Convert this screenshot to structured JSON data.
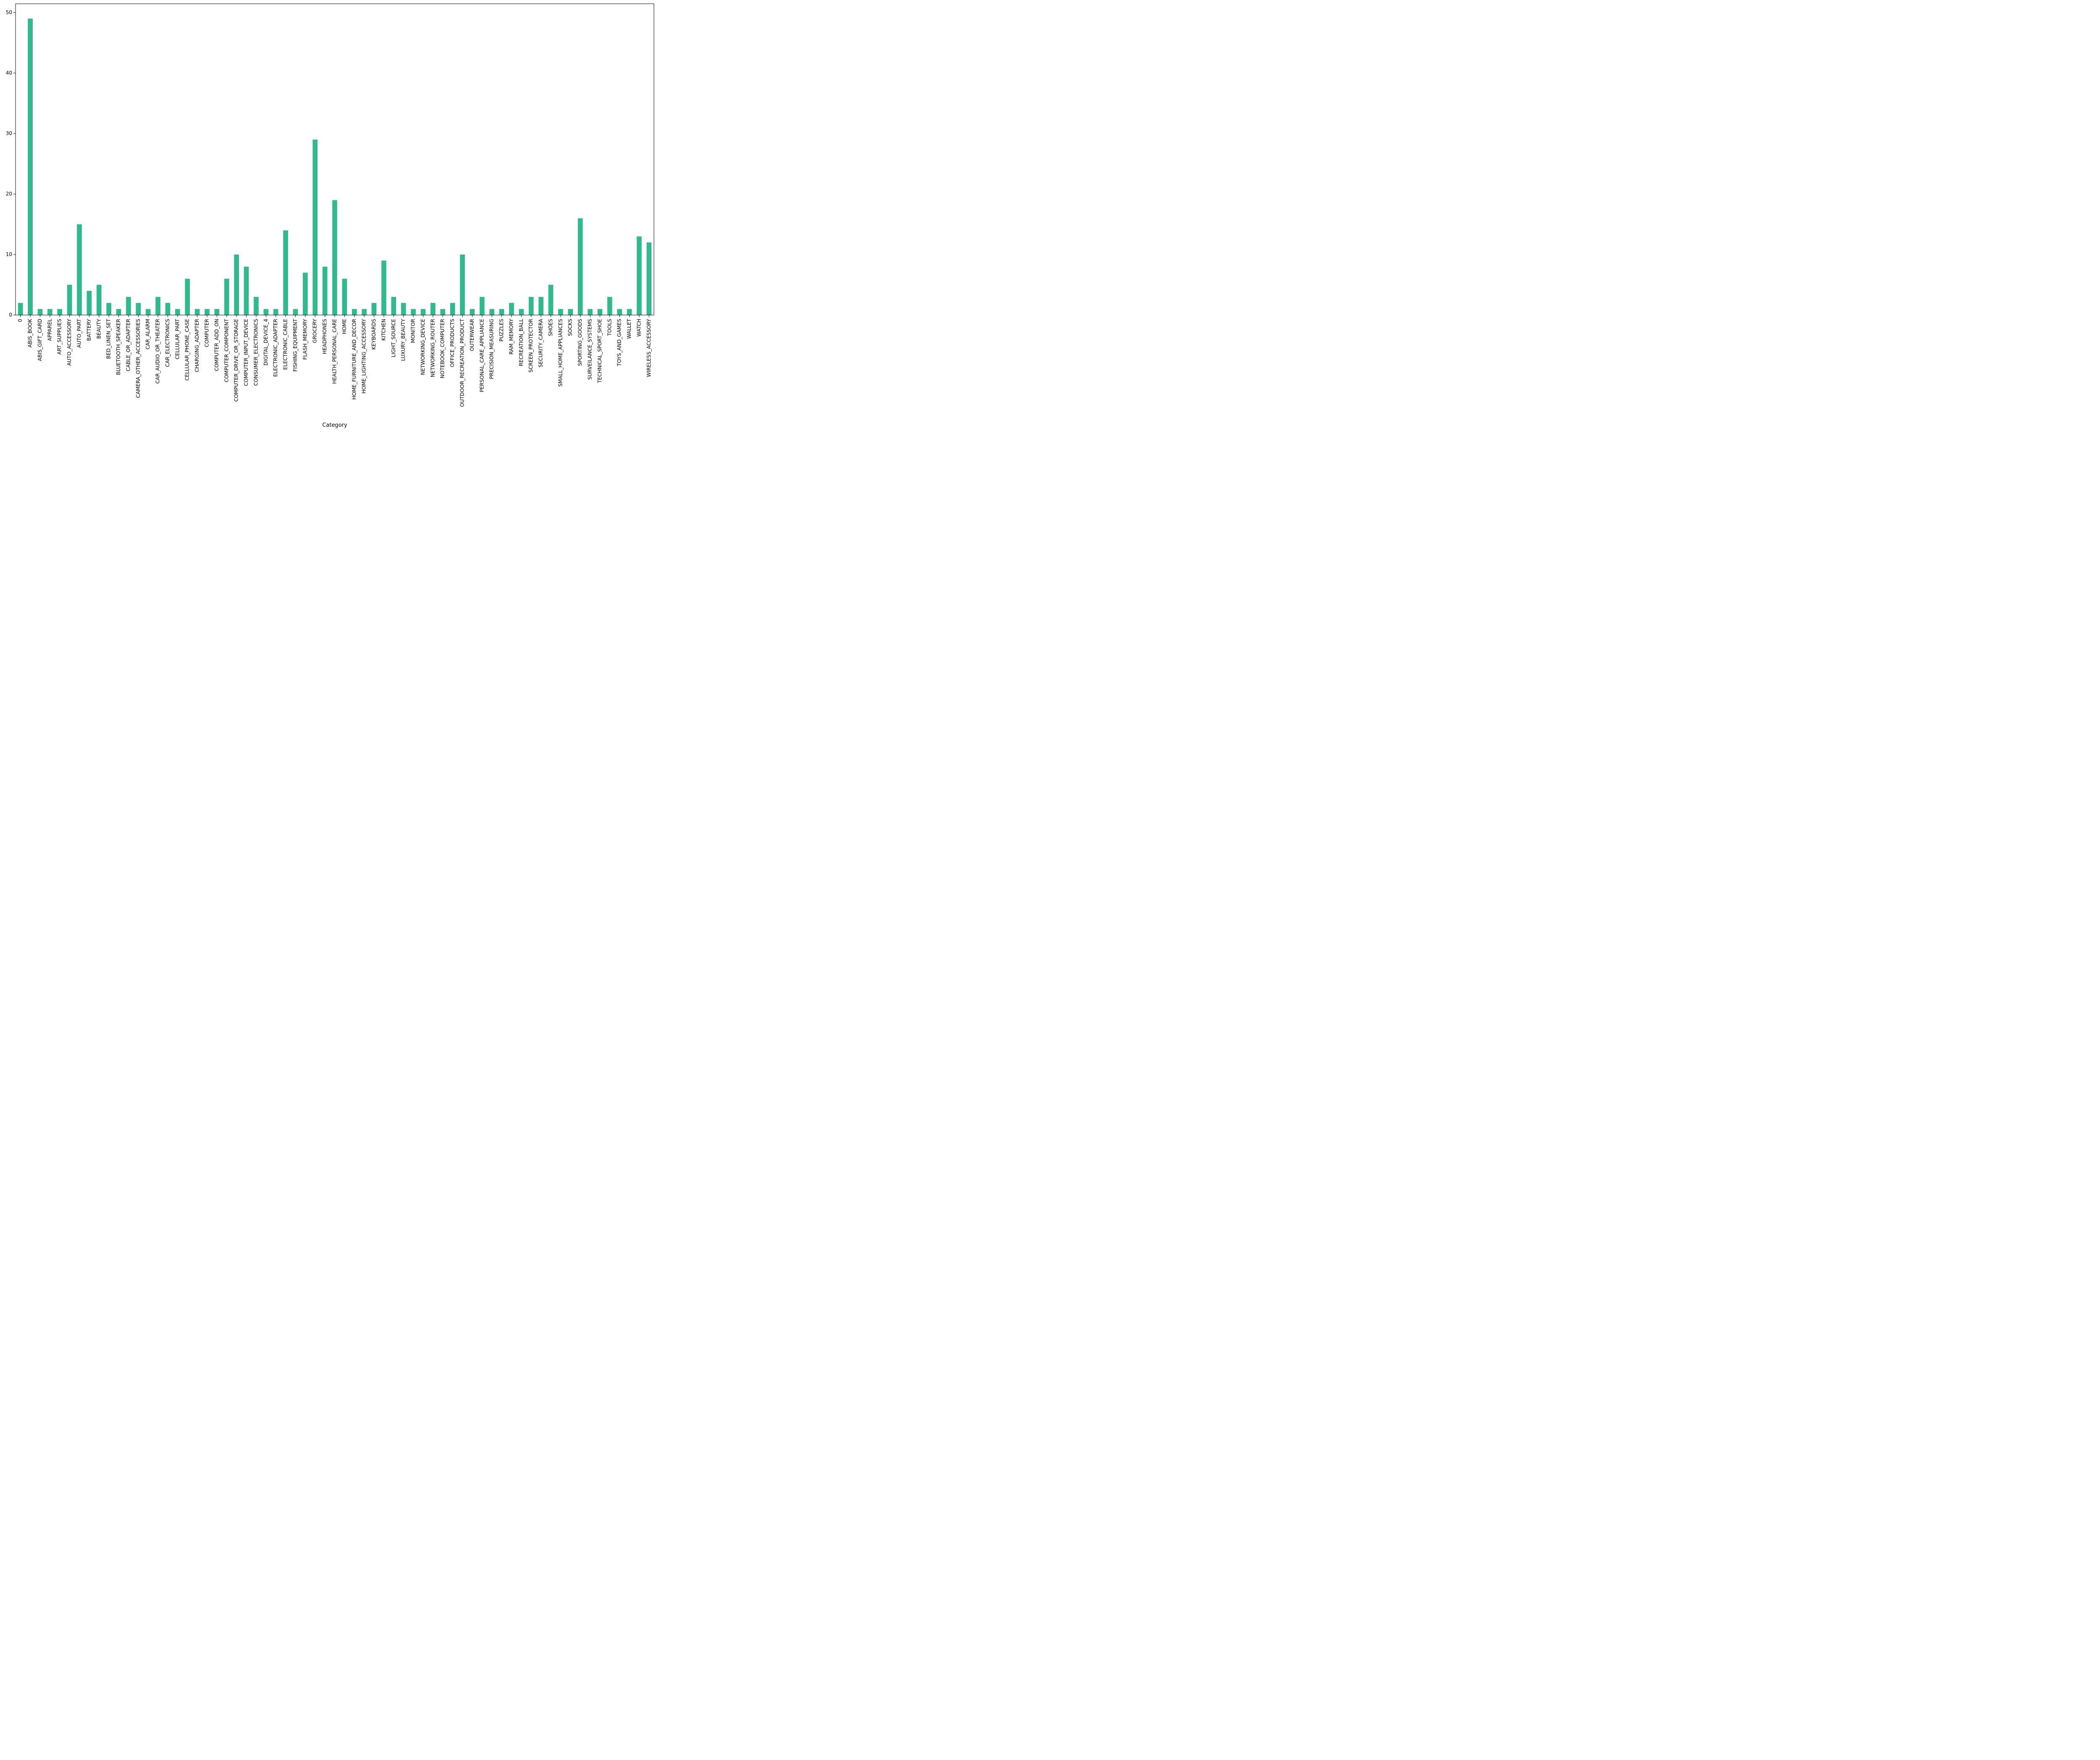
{
  "chart_data": {
    "type": "bar",
    "title": "",
    "xlabel": "Category",
    "ylabel": "",
    "ylim": [
      0,
      51.45
    ],
    "yticks": [
      0,
      10,
      20,
      30,
      40,
      50
    ],
    "grid": false,
    "legend": null,
    "bar_color": "#33b98f",
    "categories": [
      "0",
      "ABIS_BOOK",
      "ABIS_GIFT_CARD",
      "APPAREL",
      "ART_SUPPLIES",
      "AUTO_ACCESSORY",
      "AUTO_PART",
      "BATTERY",
      "BEAUTY",
      "BED_LINEN_SET",
      "BLUETOOTH_SPEAKER",
      "CABLE_OR_ADAPTER",
      "CAMERA_OTHER_ACCESSORIES",
      "CAR_ALARM",
      "CAR_AUDIO_OR_THEATER",
      "CAR_ELECTRONICS",
      "CELLULAR_PART",
      "CELLULAR_PHONE_CASE",
      "CHARGING_ADAPTER",
      "COMPUTER",
      "COMPUTER_ADD_ON",
      "COMPUTER_COMPONENT",
      "COMPUTER_DRIVE_OR_STORAGE",
      "COMPUTER_INPUT_DEVICE",
      "CONSUMER_ELECTRONICS",
      "DIGITAL_DEVICE_4",
      "ELECTRONIC_ADAPTER",
      "ELECTRONIC_CABLE",
      "FISHING_EQUIPMENT",
      "FLASH_MEMORY",
      "GROCERY",
      "HEADPHONES",
      "HEALTH_PERSONAL_CARE",
      "HOME",
      "HOME_FURNITURE_AND_DECOR",
      "HOME_LIGHTING_ACCESSORY",
      "KEYBOARDS",
      "KITCHEN",
      "LIGHT_SOURCE",
      "LUXURY_BEAUTY",
      "MONITOR",
      "NETWORKING_DEVICE",
      "NETWORKING_ROUTER",
      "NOTEBOOK_COMPUTER",
      "OFFICE_PRODUCTS",
      "OUTDOOR_RECREATION_PRODUCT",
      "OUTERWEAR",
      "PERSONAL_CARE_APPLIANCE",
      "PRECISION_MEASURING",
      "PUZZLES",
      "RAM_MEMORY",
      "RECREATION_BALL",
      "SCREEN_PROTECTOR",
      "SECURITY_CAMERA",
      "SHOES",
      "SMALL_HOME_APPLIANCES",
      "SOCKS",
      "SPORTING_GOODS",
      "SURVEILANCE_SYSTEMS",
      "TECHNICAL_SPORT_SHOE",
      "TOOLS",
      "TOYS_AND_GAMES",
      "WALLET",
      "WATCH",
      "WIRELESS_ACCESSORY"
    ],
    "values": [
      2,
      49,
      1,
      1,
      1,
      5,
      15,
      4,
      5,
      2,
      1,
      3,
      2,
      1,
      3,
      2,
      1,
      6,
      1,
      1,
      1,
      6,
      10,
      8,
      3,
      1,
      1,
      14,
      1,
      7,
      29,
      8,
      19,
      6,
      1,
      1,
      2,
      9,
      3,
      2,
      1,
      1,
      2,
      1,
      2,
      10,
      1,
      3,
      1,
      1,
      2,
      1,
      3,
      3,
      5,
      1,
      1,
      16,
      1,
      1,
      3,
      1,
      1,
      13,
      12
    ]
  }
}
